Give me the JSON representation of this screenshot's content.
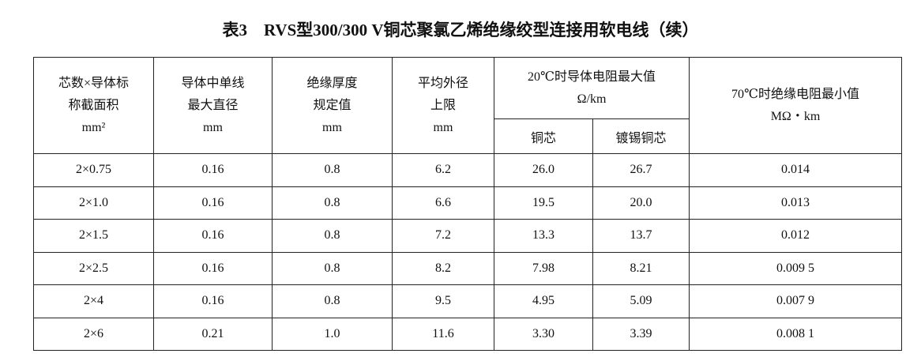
{
  "title": "表3　RVS型300/300 V铜芯聚氯乙烯绝缘绞型连接用软电线（续）",
  "table": {
    "columns": [
      {
        "lines": [
          "芯数×导体标",
          "称截面积",
          "mm²"
        ]
      },
      {
        "lines": [
          "导体中单线",
          "最大直径",
          "mm"
        ]
      },
      {
        "lines": [
          "绝缘厚度",
          "规定值",
          "mm"
        ]
      },
      {
        "lines": [
          "平均外径",
          "上限",
          "mm"
        ]
      },
      {
        "lines": [
          "20℃时导体电阻最大值",
          "Ω/km"
        ],
        "sub": [
          "铜芯",
          "镀锡铜芯"
        ]
      },
      {
        "lines": [
          "70℃时绝缘电阻最小值",
          "MΩ・km"
        ]
      }
    ],
    "rows": [
      [
        "2×0.75",
        "0.16",
        "0.8",
        "6.2",
        "26.0",
        "26.7",
        "0.014"
      ],
      [
        "2×1.0",
        "0.16",
        "0.8",
        "6.6",
        "19.5",
        "20.0",
        "0.013"
      ],
      [
        "2×1.5",
        "0.16",
        "0.8",
        "7.2",
        "13.3",
        "13.7",
        "0.012"
      ],
      [
        "2×2.5",
        "0.16",
        "0.8",
        "8.2",
        "7.98",
        "8.21",
        "0.009 5"
      ],
      [
        "2×4",
        "0.16",
        "0.8",
        "9.5",
        "4.95",
        "5.09",
        "0.007 9"
      ],
      [
        "2×6",
        "0.21",
        "1.0",
        "11.6",
        "3.30",
        "3.39",
        "0.008 1"
      ]
    ]
  }
}
